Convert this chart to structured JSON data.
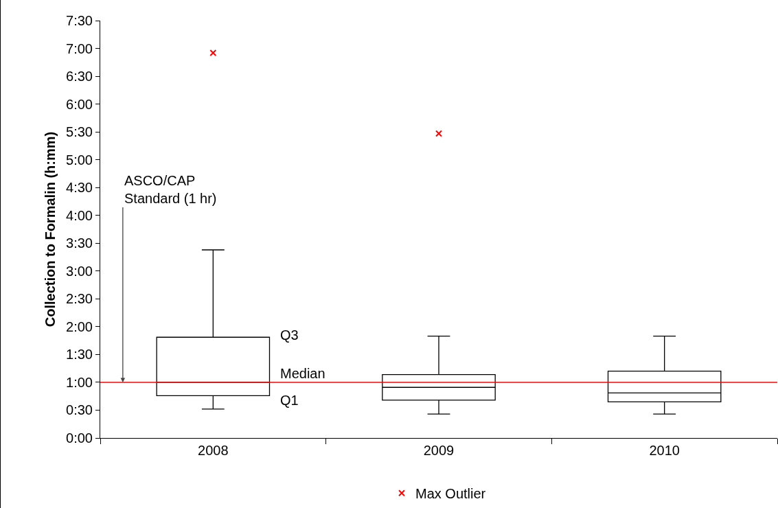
{
  "chart_data": {
    "type": "box",
    "ylabel": "Collection to Formalin (h:mm)",
    "categories": [
      "2008",
      "2009",
      "2010"
    ],
    "boxes": [
      {
        "low": 0.52,
        "q1": 0.76,
        "median": 1.0,
        "q3": 1.81,
        "high": 3.38
      },
      {
        "low": 0.43,
        "q1": 0.68,
        "median": 0.91,
        "q3": 1.14,
        "high": 1.83
      },
      {
        "low": 0.43,
        "q1": 0.65,
        "median": 0.81,
        "q3": 1.2,
        "high": 1.83
      }
    ],
    "series": [
      {
        "type": "scatter",
        "name": "Max Outlier",
        "color": "#ff0000",
        "marker": "cross",
        "values": [
          6.92,
          5.47,
          null
        ]
      }
    ],
    "ylim": [
      0,
      7.5
    ],
    "yticks": [
      {
        "value": 0,
        "label": "0:00"
      },
      {
        "value": 0.5,
        "label": "0:30"
      },
      {
        "value": 1,
        "label": "1:00"
      },
      {
        "value": 1.5,
        "label": "1:30"
      },
      {
        "value": 2,
        "label": "2:00"
      },
      {
        "value": 2.5,
        "label": "2:30"
      },
      {
        "value": 3,
        "label": "3:00"
      },
      {
        "value": 3.5,
        "label": "3:30"
      },
      {
        "value": 4,
        "label": "4:00"
      },
      {
        "value": 4.5,
        "label": "4:30"
      },
      {
        "value": 5,
        "label": "5:00"
      },
      {
        "value": 5.5,
        "label": "5:30"
      },
      {
        "value": 6,
        "label": "6:00"
      },
      {
        "value": 6.5,
        "label": "6:30"
      },
      {
        "value": 7,
        "label": "7:00"
      },
      {
        "value": 7.5,
        "label": "7:30"
      }
    ],
    "ref_lines": [
      {
        "axis": "y",
        "value": 1,
        "label": "ASCO/CAP\nStandard (1 hr)",
        "color": "#ff0000"
      }
    ],
    "annotations": [
      "Q3",
      "Median",
      "Q1"
    ],
    "grid": false,
    "legend": "bottom"
  }
}
